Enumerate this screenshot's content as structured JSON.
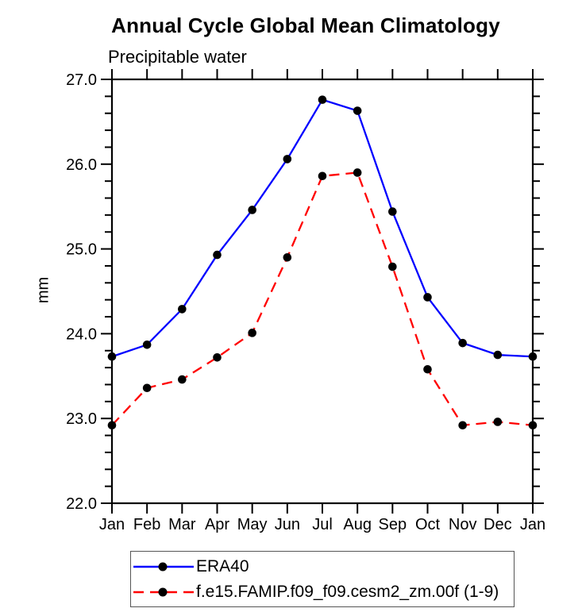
{
  "figure": {
    "background": "#ffffff",
    "frame_color": "#000000"
  },
  "chart_data": {
    "type": "line",
    "title": "Annual Cycle Global Mean Climatology",
    "subtitle": "Precipitable water",
    "xlabel": "",
    "ylabel": "mm",
    "categories": [
      "Jan",
      "Feb",
      "Mar",
      "Apr",
      "May",
      "Jun",
      "Jul",
      "Aug",
      "Sep",
      "Oct",
      "Nov",
      "Dec",
      "Jan"
    ],
    "series": [
      {
        "name": "ERA40",
        "color": "#0000ff",
        "line_style": "solid",
        "marker": "filled-circle",
        "marker_color": "#000000",
        "values": [
          23.73,
          23.87,
          24.29,
          24.93,
          25.46,
          26.06,
          26.76,
          26.63,
          25.44,
          24.43,
          23.89,
          23.75,
          23.73
        ]
      },
      {
        "name": "f.e15.FAMIP.f09_f09.cesm2_zm.00f (1-9)",
        "color": "#ff0000",
        "line_style": "dashed",
        "marker": "filled-circle",
        "marker_color": "#000000",
        "values": [
          22.92,
          23.36,
          23.46,
          23.72,
          24.01,
          24.9,
          25.86,
          25.9,
          24.79,
          23.58,
          22.92,
          22.96,
          22.92
        ]
      }
    ],
    "ylim": [
      22.0,
      27.0
    ],
    "ytick_major_interval": 1.0,
    "ytick_minor_interval": 0.2,
    "ytick_labels": [
      "22.0",
      "23.0",
      "24.0",
      "25.0",
      "26.0",
      "27.0"
    ],
    "grid": false,
    "legend_position": "bottom-left"
  }
}
